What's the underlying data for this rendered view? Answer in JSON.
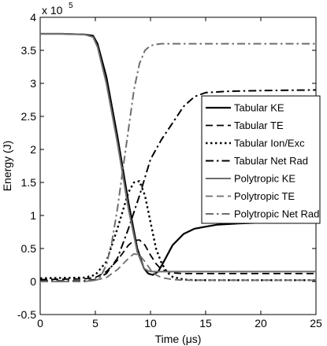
{
  "chart_data": {
    "type": "line",
    "xlabel": "Time (μs)",
    "ylabel": "Energy (J)",
    "y_multiplier": "x 10",
    "y_multiplier_exponent": "5",
    "xlim": [
      0,
      25
    ],
    "ylim": [
      -0.5,
      4
    ],
    "x_ticks": [
      0,
      5,
      10,
      15,
      20,
      25
    ],
    "y_ticks": [
      -0.5,
      0,
      0.5,
      1,
      1.5,
      2,
      2.5,
      3,
      3.5,
      4
    ],
    "x_tick_labels": [
      "0",
      "5",
      "10",
      "15",
      "20",
      "25"
    ],
    "y_tick_labels": [
      "-0.5",
      "0",
      "0.5",
      "1",
      "1.5",
      "2",
      "2.5",
      "3",
      "3.5",
      "4"
    ],
    "grid": false,
    "legend_position": "right",
    "series": [
      {
        "name": "Tabular KE",
        "color": "#000000",
        "dash": "solid",
        "width": 2.2,
        "x": [
          0,
          2,
          4,
          4.8,
          5.2,
          6,
          7,
          8,
          8.8,
          9.4,
          9.8,
          10.2,
          10.7,
          11.2,
          12,
          13,
          14,
          16,
          18,
          20,
          22,
          25
        ],
        "y": [
          3.75,
          3.75,
          3.74,
          3.72,
          3.6,
          3.1,
          2.2,
          1.2,
          0.5,
          0.2,
          0.12,
          0.1,
          0.15,
          0.3,
          0.55,
          0.72,
          0.8,
          0.86,
          0.88,
          0.89,
          0.9,
          0.9
        ]
      },
      {
        "name": "Tabular TE",
        "color": "#000000",
        "dash": "longdash",
        "width": 1.8,
        "x": [
          0,
          4,
          5,
          6,
          7,
          8,
          8.5,
          9,
          9.5,
          10,
          10.5,
          11,
          12,
          13,
          14,
          16,
          20,
          25
        ],
        "y": [
          0.03,
          0.04,
          0.06,
          0.15,
          0.32,
          0.55,
          0.62,
          0.63,
          0.55,
          0.4,
          0.27,
          0.18,
          0.13,
          0.12,
          0.12,
          0.12,
          0.12,
          0.12
        ]
      },
      {
        "name": "Tabular Ion/Exc",
        "color": "#000000",
        "dash": "dot",
        "width": 2.4,
        "x": [
          0,
          4,
          5,
          6,
          7,
          8,
          8.5,
          9,
          9.5,
          10,
          10.5,
          11,
          11.5,
          12,
          13,
          14,
          16,
          20,
          25
        ],
        "y": [
          0.05,
          0.06,
          0.1,
          0.3,
          0.8,
          1.35,
          1.5,
          1.52,
          1.3,
          0.9,
          0.5,
          0.28,
          0.14,
          0.07,
          0.03,
          0.02,
          0.02,
          0.02,
          0.02
        ]
      },
      {
        "name": "Tabular Net Rad",
        "color": "#000000",
        "dash": "dashdot",
        "width": 2.0,
        "x": [
          0,
          4,
          5,
          6,
          7,
          8,
          9,
          10,
          11,
          12,
          13,
          14,
          15,
          17,
          20,
          25
        ],
        "y": [
          0.01,
          0.01,
          0.03,
          0.12,
          0.35,
          0.8,
          1.3,
          1.85,
          2.15,
          2.4,
          2.65,
          2.8,
          2.86,
          2.88,
          2.89,
          2.9
        ]
      },
      {
        "name": "Polytropic KE",
        "color": "#6e6e6e",
        "dash": "solid",
        "width": 2.0,
        "x": [
          0,
          2,
          4,
          4.8,
          5.2,
          6,
          7,
          8,
          8.8,
          9.4,
          9.8,
          10.2,
          10.8,
          12,
          14,
          17,
          20,
          25
        ],
        "y": [
          3.75,
          3.75,
          3.74,
          3.7,
          3.55,
          3.0,
          2.1,
          1.1,
          0.45,
          0.2,
          0.16,
          0.15,
          0.15,
          0.15,
          0.15,
          0.15,
          0.15,
          0.15
        ]
      },
      {
        "name": "Polytropic TE",
        "color": "#6e6e6e",
        "dash": "longdash",
        "width": 1.8,
        "x": [
          0,
          4,
          5,
          6,
          7,
          8,
          8.5,
          9,
          9.5,
          10,
          10.5,
          11,
          12,
          13,
          15,
          20,
          25
        ],
        "y": [
          0.0,
          0.0,
          0.02,
          0.06,
          0.18,
          0.35,
          0.42,
          0.4,
          0.3,
          0.18,
          0.1,
          0.06,
          0.03,
          0.02,
          0.02,
          0.02,
          0.02
        ]
      },
      {
        "name": "Polytropic Net Rad",
        "color": "#6e6e6e",
        "dash": "dashdot",
        "width": 2.0,
        "x": [
          0,
          4,
          5,
          5.5,
          6,
          6.5,
          7,
          7.5,
          8,
          8.5,
          9,
          9.5,
          10,
          10.5,
          11,
          11.5,
          12,
          13,
          15,
          20,
          25
        ],
        "y": [
          0.0,
          0.0,
          0.02,
          0.08,
          0.25,
          0.6,
          1.1,
          1.7,
          2.3,
          2.9,
          3.3,
          3.5,
          3.57,
          3.59,
          3.6,
          3.6,
          3.6,
          3.6,
          3.6,
          3.6,
          3.6
        ]
      }
    ]
  }
}
